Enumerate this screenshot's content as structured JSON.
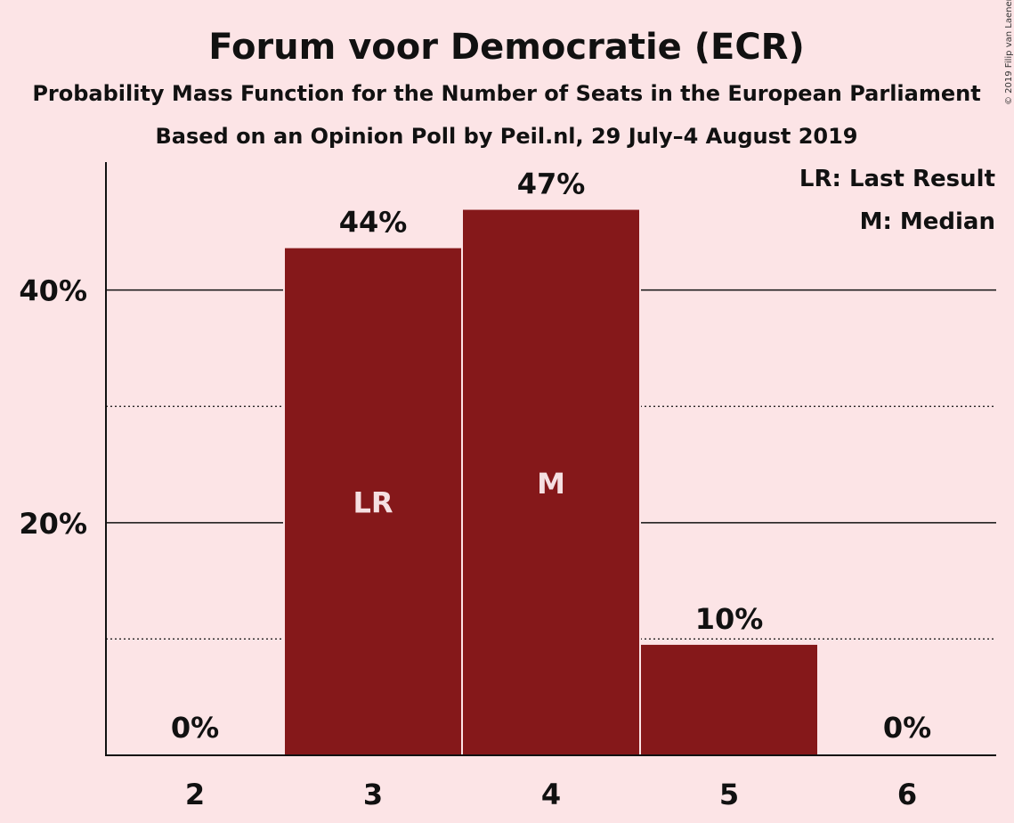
{
  "title": "Forum voor Democratie (ECR)",
  "subtitle": "Probability Mass Function for the Number of Seats in the European Parliament",
  "subtitle2": "Based on an Opinion Poll by Peil.nl, 29 July–4 August 2019",
  "copyright": "© 2019 Filip van Laenen",
  "legend": {
    "last_result": "LR: Last Result",
    "median": "M: Median"
  },
  "colors": {
    "background": "#fce4e6",
    "bar": "#85181a",
    "bar_text": "#f5e0e2"
  },
  "chart_data": {
    "type": "bar",
    "title": "Forum voor Democratie (ECR)",
    "xlabel": "",
    "ylabel": "",
    "categories": [
      "2",
      "3",
      "4",
      "5",
      "6"
    ],
    "values": [
      0,
      43.6,
      46.9,
      9.5,
      0
    ],
    "value_labels": [
      "0%",
      "44%",
      "47%",
      "10%",
      "0%"
    ],
    "bar_markers": [
      "",
      "LR",
      "M",
      "",
      ""
    ],
    "ylim": [
      0,
      51
    ],
    "yticks": [
      {
        "value": 20,
        "label": "20%",
        "major": true
      },
      {
        "value": 40,
        "label": "40%",
        "major": true
      }
    ],
    "minor_gridlines": [
      10,
      30
    ],
    "grid": true,
    "legend_position": "top-right"
  }
}
